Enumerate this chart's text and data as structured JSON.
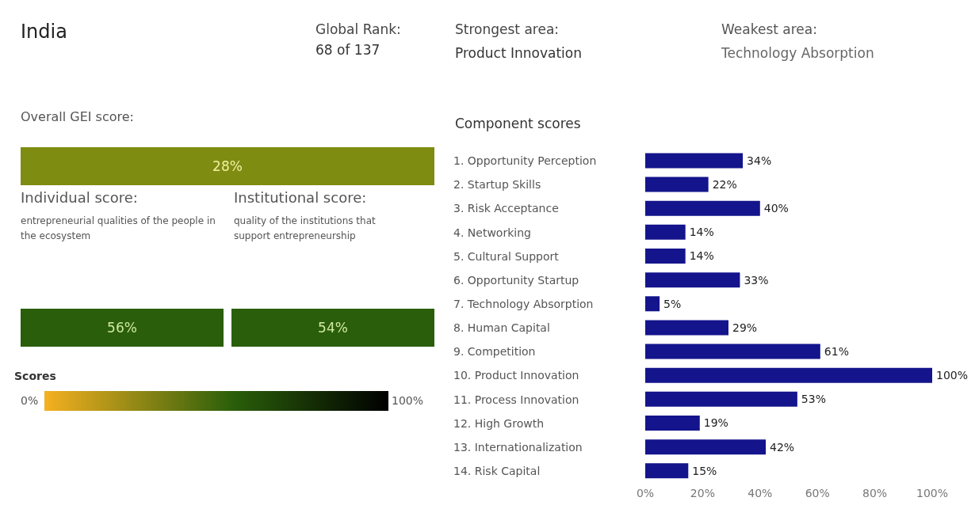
{
  "chart_data": [
    {
      "type": "other",
      "title": "India",
      "annotations": [
        "Global Rank:",
        "68 of 137",
        "Strongest area:",
        "Product Innovation",
        "Weakest area:",
        "Technology Absorption",
        "entrepreneurial qualities of the people in the ecosystem",
        "quality of the institutions that support entrepreneurship",
        "Overall GEI score:",
        "Individual score:",
        "Institutional score:",
        "Scores",
        "0%",
        "100%"
      ],
      "values": [
        28,
        56,
        54
      ],
      "value_labels": [
        "28%",
        "56%",
        "54%"
      ],
      "colors": [
        "#7f8c12",
        "#2a5e0a",
        "#2a5e0a"
      ]
    },
    {
      "type": "bar",
      "orientation": "horizontal",
      "title": "Component scores",
      "categories": [
        "1. Opportunity Perception",
        "2. Startup Skills",
        "3. Risk Acceptance",
        "4. Networking",
        "5. Cultural Support",
        "6. Opportunity Startup",
        "7. Technology Absorption",
        "8. Human Capital",
        "9. Competition",
        "10. Product Innovation",
        "11. Process Innovation",
        "12. High Growth",
        "13. Internationalization",
        "14. Risk Capital"
      ],
      "values": [
        34,
        22,
        40,
        14,
        14,
        33,
        5,
        29,
        61,
        100,
        53,
        19,
        42,
        15
      ],
      "value_labels": [
        "34%",
        "22%",
        "40%",
        "14%",
        "14%",
        "33%",
        "5%",
        "29%",
        "61%",
        "100%",
        "53%",
        "19%",
        "42%",
        "15%"
      ],
      "color": "#14148c",
      "xlim": [
        0,
        100
      ],
      "xticks": [
        {
          "value": 0,
          "label": "0%"
        },
        {
          "value": 20,
          "label": "20%"
        },
        {
          "value": 40,
          "label": "40%"
        },
        {
          "value": 60,
          "label": "60%"
        },
        {
          "value": 80,
          "label": "80%"
        },
        {
          "value": 100,
          "label": "100%"
        }
      ],
      "grid": false
    }
  ]
}
